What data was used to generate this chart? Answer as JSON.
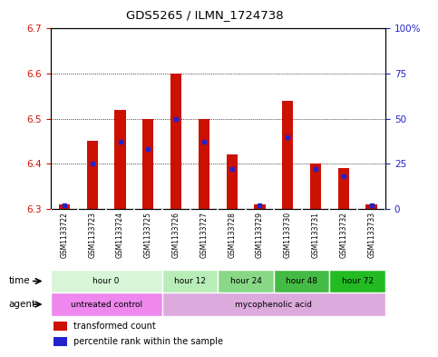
{
  "title": "GDS5265 / ILMN_1724738",
  "samples": [
    "GSM1133722",
    "GSM1133723",
    "GSM1133724",
    "GSM1133725",
    "GSM1133726",
    "GSM1133727",
    "GSM1133728",
    "GSM1133729",
    "GSM1133730",
    "GSM1133731",
    "GSM1133732",
    "GSM1133733"
  ],
  "transformed_counts": [
    6.31,
    6.45,
    6.52,
    6.5,
    6.6,
    6.5,
    6.42,
    6.31,
    6.54,
    6.4,
    6.39,
    6.31
  ],
  "percentile_ranks": [
    2,
    25,
    37,
    33,
    50,
    37,
    22,
    2,
    40,
    22,
    18,
    2
  ],
  "ylim_left": [
    6.3,
    6.7
  ],
  "ylim_right": [
    0,
    100
  ],
  "yticks_left": [
    6.3,
    6.4,
    6.5,
    6.6,
    6.7
  ],
  "yticks_right": [
    0,
    25,
    50,
    75,
    100
  ],
  "ytick_labels_right": [
    "0",
    "25",
    "50",
    "75",
    "100%"
  ],
  "base_value": 6.3,
  "time_groups": [
    {
      "label": "hour 0",
      "start": 0,
      "end": 4,
      "color": "#d8f5d8"
    },
    {
      "label": "hour 12",
      "start": 4,
      "end": 6,
      "color": "#b8edb8"
    },
    {
      "label": "hour 24",
      "start": 6,
      "end": 8,
      "color": "#88d888"
    },
    {
      "label": "hour 48",
      "start": 8,
      "end": 10,
      "color": "#44bb44"
    },
    {
      "label": "hour 72",
      "start": 10,
      "end": 12,
      "color": "#22bb22"
    }
  ],
  "agent_groups": [
    {
      "label": "untreated control",
      "start": 0,
      "end": 4,
      "color": "#ee88ee"
    },
    {
      "label": "mycophenolic acid",
      "start": 4,
      "end": 12,
      "color": "#ddaadd"
    }
  ],
  "bar_color": "#cc1100",
  "dot_color": "#2222cc",
  "bg_color": "#ffffff",
  "plot_bg": "#ffffff",
  "left_tick_color": "#cc1100",
  "right_tick_color": "#2222cc",
  "grid_color": "#000000",
  "sample_bg_color": "#c8c8c8",
  "legend_items": [
    {
      "label": "transformed count",
      "color": "#cc1100"
    },
    {
      "label": "percentile rank within the sample",
      "color": "#2222cc"
    }
  ]
}
